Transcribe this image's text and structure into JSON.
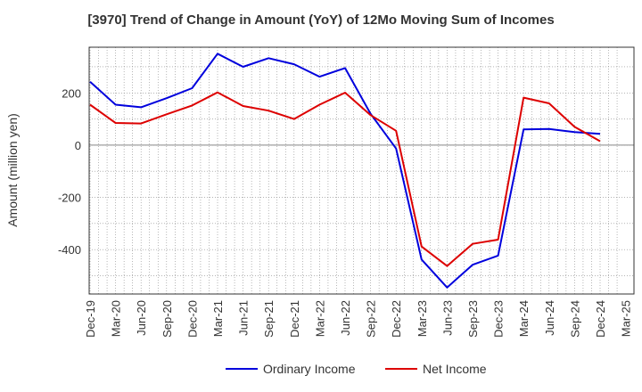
{
  "chart_data": {
    "type": "line",
    "title": "[3970]  Trend of Change in Amount (YoY) of 12Mo Moving Sum of Incomes",
    "xlabel": "",
    "ylabel": "Amount (million yen)",
    "ylim": [
      -570,
      375
    ],
    "yticks": [
      200,
      0,
      -200,
      -400
    ],
    "grid": true,
    "legend_position": "bottom",
    "x": [
      "Dec-19",
      "Mar-20",
      "Jun-20",
      "Sep-20",
      "Dec-20",
      "Mar-21",
      "Jun-21",
      "Sep-21",
      "Dec-21",
      "Mar-22",
      "Jun-22",
      "Sep-22",
      "Dec-22",
      "Mar-23",
      "Jun-23",
      "Sep-23",
      "Dec-23",
      "Mar-24",
      "Jun-24",
      "Sep-24",
      "Dec-24",
      "Mar-25"
    ],
    "series": [
      {
        "name": "Ordinary Income",
        "color": "#0000dd",
        "values": [
          243,
          155,
          145,
          180,
          218,
          350,
          300,
          333,
          310,
          262,
          295,
          120,
          -13,
          -438,
          -545,
          -458,
          -423,
          60,
          62,
          50,
          43,
          null
        ]
      },
      {
        "name": "Net Income",
        "color": "#dd0000",
        "values": [
          155,
          85,
          83,
          118,
          152,
          202,
          150,
          132,
          100,
          155,
          201,
          115,
          55,
          -388,
          -463,
          -378,
          -362,
          182,
          160,
          70,
          15,
          null
        ]
      }
    ]
  }
}
